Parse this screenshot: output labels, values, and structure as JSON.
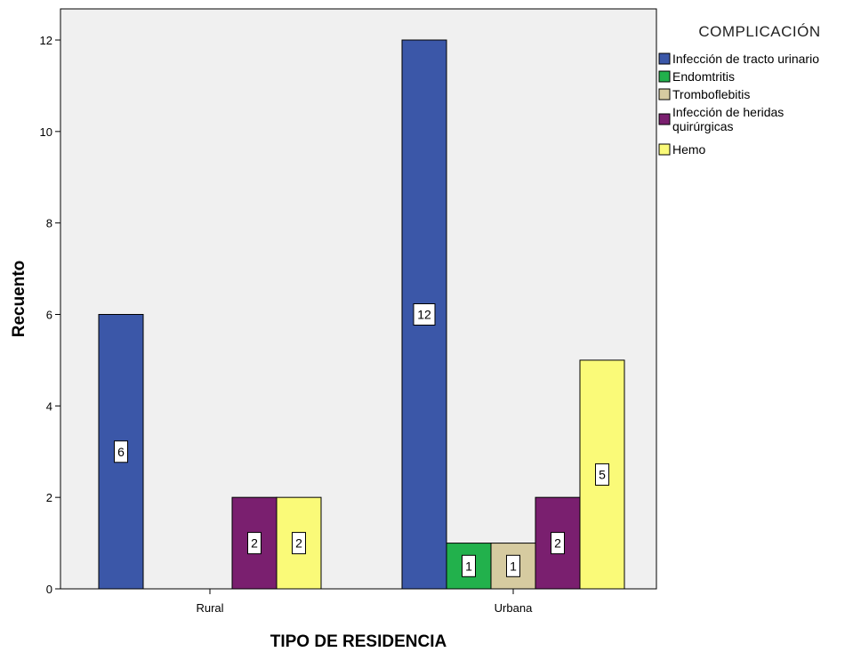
{
  "chart_data": {
    "type": "bar",
    "categories": [
      "Rural",
      "Urbana"
    ],
    "series": [
      {
        "name": "Infección de tracto urinario",
        "color": "#3b57a8",
        "values": [
          6,
          12
        ]
      },
      {
        "name": "Endomtritis",
        "color": "#22b14c",
        "values": [
          0,
          1
        ]
      },
      {
        "name": "Tromboflebitis",
        "color": "#d6cba0",
        "values": [
          0,
          1
        ]
      },
      {
        "name": "Infección de heridas quirúrgicas",
        "color": "#7a1f6f",
        "values": [
          2,
          2
        ]
      },
      {
        "name": "Hemo",
        "color": "#fafa78",
        "values": [
          2,
          5
        ]
      }
    ],
    "data_labels": [
      [
        "6",
        "",
        "",
        "2",
        "2"
      ],
      [
        "12",
        "1",
        "1",
        "2",
        "5"
      ]
    ],
    "yticks": [
      "0",
      "2",
      "4",
      "6",
      "8",
      "10",
      "12"
    ],
    "ylim": [
      0,
      12.6
    ],
    "xlabel": "TIPO DE RESIDENCIA",
    "ylabel": "Recuento",
    "legend_title": "COMPLICACIÓN",
    "legend_placement": "right",
    "grid": false,
    "plot_background": "#f0f0f0"
  }
}
